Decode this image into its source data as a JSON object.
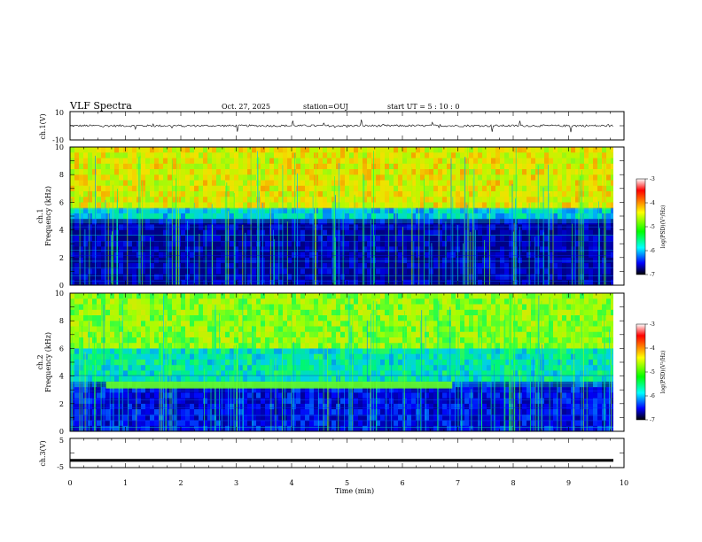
{
  "header": {
    "title": "VLF Spectra",
    "date": "Oct. 27, 2025",
    "station": "station=OUJ",
    "start_ut": "start UT =  5 : 10 : 0"
  },
  "chart_data": [
    {
      "id": "ch1-waveform",
      "type": "line",
      "ylabel": "ch.1(V)",
      "xlim": [
        0,
        10
      ],
      "ylim": [
        -10,
        10
      ],
      "yticks": [
        "10",
        "-10"
      ],
      "series_description_values": {
        "baseline": 0,
        "typical_amplitude": 1.5,
        "spike_amplitude": 4
      }
    },
    {
      "id": "ch1-spectrogram",
      "type": "heatmap",
      "ylabel_line1": "ch.1",
      "ylabel_line2": "Frequency (kHz)",
      "xlim": [
        0,
        10
      ],
      "ylim": [
        0,
        10
      ],
      "yticks": [
        "0",
        "2",
        "4",
        "6",
        "8",
        "10"
      ],
      "bands": [
        {
          "from_khz": 0,
          "to_khz": 4.5,
          "log_psd": -6.8
        },
        {
          "from_khz": 4.5,
          "to_khz": 5.5,
          "log_psd": -5.6
        },
        {
          "from_khz": 5.5,
          "to_khz": 10,
          "log_psd": -4.2
        }
      ],
      "colorbar": {
        "label": "log(PSD)(V²/Hz)",
        "range": [
          -7,
          -3
        ],
        "ticks": [
          "-3",
          "-4",
          "-5",
          "-6",
          "-7"
        ],
        "colors": [
          "#ffffff",
          "#ff0000",
          "#ffff00",
          "#00ff00",
          "#00ffff",
          "#0000ff",
          "#000000"
        ]
      }
    },
    {
      "id": "ch2-spectrogram",
      "type": "heatmap",
      "ylabel_line1": "ch.2",
      "ylabel_line2": "Frequency (kHz)",
      "xlim": [
        0,
        10
      ],
      "ylim": [
        0,
        10
      ],
      "yticks": [
        "0",
        "2",
        "4",
        "6",
        "8",
        "10"
      ],
      "bands": [
        {
          "from_khz": 0,
          "to_khz": 3.2,
          "log_psd": -6.5
        },
        {
          "from_khz": 3.2,
          "to_khz": 6,
          "log_psd": -5.4
        },
        {
          "from_khz": 6,
          "to_khz": 10,
          "log_psd": -4.6
        }
      ],
      "emission_band": {
        "from_min": 0.65,
        "to_min": 6.9,
        "low_khz": 3.1,
        "high_khz": 3.6
      },
      "colorbar": {
        "label": "log(PSD)(V²/Hz)",
        "range": [
          -7,
          -3
        ],
        "ticks": [
          "-3",
          "-4",
          "-5",
          "-6",
          "-7"
        ],
        "colors": [
          "#ffffff",
          "#ff0000",
          "#ffff00",
          "#00ff00",
          "#00ffff",
          "#0000ff",
          "#000000"
        ]
      }
    },
    {
      "id": "ch3-waveform",
      "type": "line",
      "ylabel": "ch.3(V)",
      "xlabel": "Time (min)",
      "xlim": [
        0,
        10
      ],
      "ylim": [
        -5,
        5
      ],
      "yticks": [
        "5",
        "-5"
      ],
      "xticks": [
        "0",
        "1",
        "2",
        "3",
        "4",
        "5",
        "6",
        "7",
        "8",
        "9",
        "10"
      ],
      "level": -2.5
    }
  ]
}
